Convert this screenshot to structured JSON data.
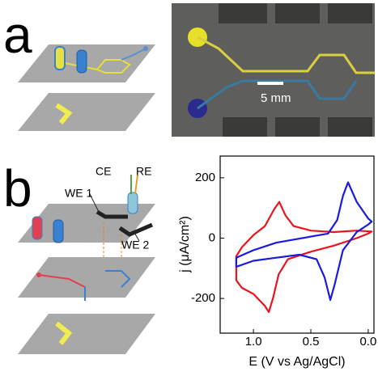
{
  "panels": [
    {
      "label": "a",
      "scale_bar": "5 mm"
    },
    {
      "label": "b",
      "electrode_labels": [
        "CE",
        "RE",
        "WE 1",
        "WE 2"
      ]
    }
  ],
  "chart_data": {
    "type": "line",
    "x_label": "E (V vs Ag/AgCl)",
    "y_label": "j (μA/cm²)",
    "xlim": [
      1.29,
      -0.05
    ],
    "ylim": [
      -315,
      272
    ],
    "xticks": [
      {
        "value": 1.0,
        "label": "1.0"
      },
      {
        "value": 0.5,
        "label": "0.5"
      },
      {
        "value": 0.0,
        "label": "0.0"
      }
    ],
    "yticks": [
      200,
      0,
      -200
    ],
    "series": [
      {
        "color": "#e8141e",
        "x": [
          1.15,
          1.1,
          1.0,
          0.9,
          0.866,
          0.83,
          0.78,
          0.7,
          0.5,
          0.3,
          0.1,
          0.0,
          -0.03,
          0.1,
          0.3,
          0.5,
          0.65,
          0.72,
          0.775,
          0.82,
          0.9,
          1.0,
          1.1,
          1.15
        ],
        "values": [
          -140,
          -165,
          -185,
          -225,
          -245,
          -200,
          -120,
          -70,
          -45,
          -25,
          0,
          15,
          22,
          25,
          20,
          25,
          40,
          75,
          120,
          95,
          40,
          10,
          -30,
          -60
        ]
      },
      {
        "color": "#1a1ae0",
        "x": [
          1.15,
          1.0,
          0.8,
          0.6,
          0.45,
          0.38,
          0.33,
          0.29,
          0.22,
          0.1,
          0.0,
          -0.03,
          0.0,
          0.1,
          0.176,
          0.22,
          0.27,
          0.35,
          0.5,
          0.8,
          1.0,
          1.15
        ],
        "values": [
          -95,
          -75,
          -65,
          -55,
          -70,
          -130,
          -205,
          -150,
          -40,
          20,
          45,
          55,
          65,
          120,
          185,
          140,
          60,
          15,
          5,
          -15,
          -40,
          -65
        ]
      }
    ]
  }
}
